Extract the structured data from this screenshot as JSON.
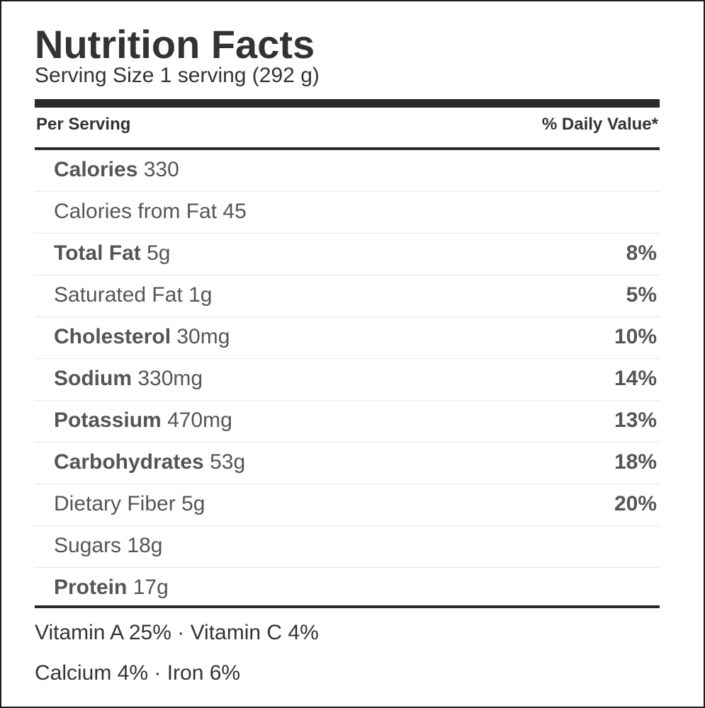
{
  "label": {
    "title": "Nutrition Facts",
    "serving_size": "Serving Size 1 serving (292 g)",
    "per_serving": "Per Serving",
    "daily_value_header": "% Daily Value*"
  },
  "nutrients": [
    {
      "name": "Calories",
      "bold": true,
      "amount": "330",
      "dv": ""
    },
    {
      "name": "Calories from Fat",
      "bold": false,
      "amount": "45",
      "dv": ""
    },
    {
      "name": "Total Fat",
      "bold": true,
      "amount": "5g",
      "dv": "8%"
    },
    {
      "name": "Saturated Fat",
      "bold": false,
      "amount": "1g",
      "dv": "5%"
    },
    {
      "name": "Cholesterol",
      "bold": true,
      "amount": "30mg",
      "dv": "10%"
    },
    {
      "name": "Sodium",
      "bold": true,
      "amount": "330mg",
      "dv": "14%"
    },
    {
      "name": "Potassium",
      "bold": true,
      "amount": "470mg",
      "dv": "13%"
    },
    {
      "name": "Carbohydrates",
      "bold": true,
      "amount": "53g",
      "dv": "18%"
    },
    {
      "name": "Dietary Fiber",
      "bold": false,
      "amount": "5g",
      "dv": "20%"
    },
    {
      "name": "Sugars",
      "bold": false,
      "amount": "18g",
      "dv": ""
    },
    {
      "name": "Protein",
      "bold": true,
      "amount": "17g",
      "dv": ""
    }
  ],
  "vitamins": {
    "line1": "Vitamin A 25% · Vitamin C 4%",
    "line2": "Calcium 4% · Iron 6%"
  }
}
